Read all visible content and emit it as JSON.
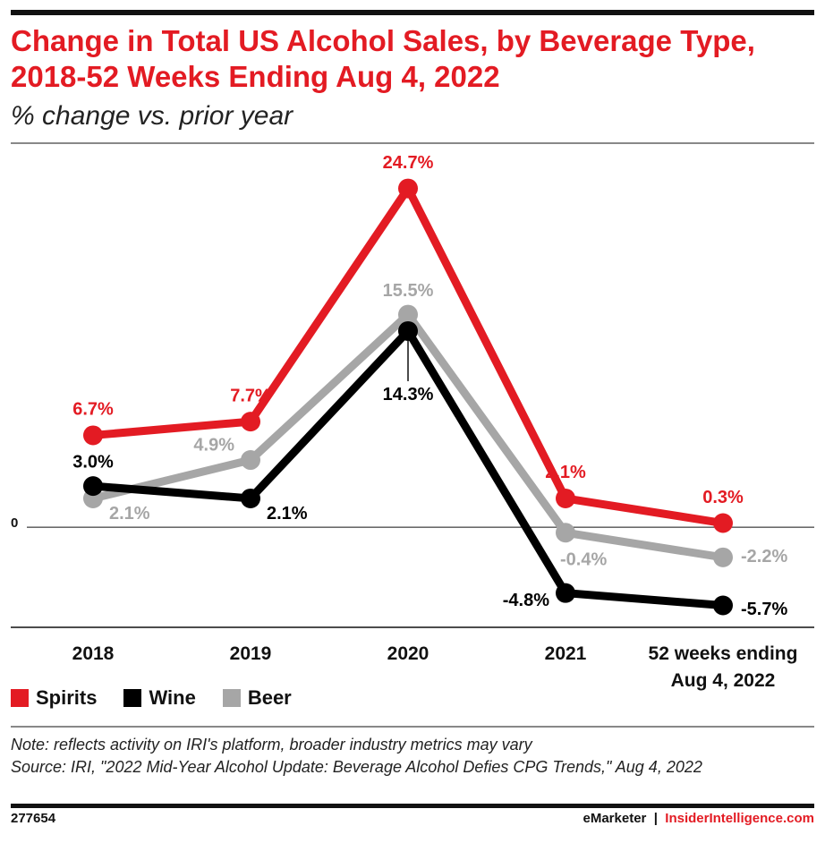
{
  "chart_data": {
    "type": "line",
    "title": "Change in Total US Alcohol Sales, by Beverage Type, 2018-52 Weeks Ending Aug 4, 2022",
    "subtitle": "% change vs. prior year",
    "categories": [
      "2018",
      "2019",
      "2020",
      "2021",
      "52 weeks ending Aug 4, 2022"
    ],
    "series": [
      {
        "name": "Spirits",
        "color": "#e31b23",
        "values": [
          6.7,
          7.7,
          24.7,
          2.1,
          0.3
        ],
        "value_labels": [
          "6.7%",
          "7.7%",
          "24.7%",
          "2.1%",
          "0.3%"
        ]
      },
      {
        "name": "Wine",
        "color": "#000000",
        "values": [
          3.0,
          2.1,
          14.3,
          -4.8,
          -5.7
        ],
        "value_labels": [
          "3.0%",
          "2.1%",
          "14.3%",
          "-4.8%",
          "-5.7%"
        ]
      },
      {
        "name": "Beer",
        "color": "#a6a6a6",
        "values": [
          2.1,
          4.9,
          15.5,
          -0.4,
          -2.2
        ],
        "value_labels": [
          "2.1%",
          "4.9%",
          "15.5%",
          "-0.4%",
          "-2.2%"
        ]
      }
    ],
    "ylim": [
      -7.3,
      28
    ],
    "yticks": [
      0
    ],
    "legend": "bottom-left",
    "note": "Note: reflects activity on IRI's platform, broader industry metrics may vary",
    "source": "Source: IRI, \"2022 Mid-Year Alcohol Update: Beverage Alcohol Defies CPG Trends,\" Aug 4, 2022",
    "chart_id": "277654",
    "brand": "eMarketer",
    "separator": "|",
    "site": "InsiderIntelligence.com"
  }
}
